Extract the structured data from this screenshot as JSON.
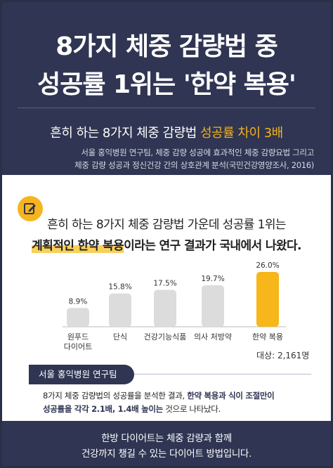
{
  "header": {
    "headline_line1": "8가지 체중 감량법 중",
    "headline_line2": "성공률 1위는 '한약 복용'",
    "subtitle_plain": "흔히 하는 8가지 체중 감량법 ",
    "subtitle_highlight": "성공률 차이 3배",
    "source_line1": "서울 홍익병원 연구팀, 체중 감량 성공에 효과적인 체중 감량요법 그리고",
    "source_line2": "체중 감량 성공과 정신건강 간의 상호관계 분석(국민건강영양조사, 2016)"
  },
  "intro": {
    "line1": "흔히 하는 8가지 체중 감량법 가운데 성공률 1위는",
    "line2_highlight": "계획적인 한약 복용",
    "line2_rest": "이라는 연구 결과가 국내에서 나왔다."
  },
  "chart_data": {
    "type": "bar",
    "categories": [
      "원푸드\n다이어트",
      "단식",
      "건강기능식품",
      "의사 처방약",
      "한약 복용"
    ],
    "values": [
      8.9,
      15.8,
      17.5,
      19.7,
      26.0
    ],
    "value_labels": [
      "8.9%",
      "15.8%",
      "17.5%",
      "19.7%",
      "26.0%"
    ],
    "title": "",
    "xlabel": "",
    "ylabel": "",
    "ylim": [
      0,
      26.0
    ],
    "colors": {
      "bar": "#dcdcdc",
      "highlight": "#f7b619",
      "baseline": "#b8b8b8"
    },
    "highlight_index": 4
  },
  "sample_size": "대상: 2,161명",
  "tag": "서울 홍익병원 연구팀",
  "note": {
    "l1_a": "8가지 체중 감량법의 성공률을 분석한 결과, ",
    "l1_b": "한약 복용과 식이 조절만이",
    "l2_a": "성공률을 각각 2.1배, 1.4배 높이는",
    "l2_b": " 것으로 나타났다."
  },
  "footer": {
    "line1": "한방 다이어트는 체중 감량과 함께",
    "line2": "건강까지 챙길 수 있는 다이어트 방법입니다."
  },
  "icons": {
    "intro_icon": "pencil-note-icon"
  }
}
